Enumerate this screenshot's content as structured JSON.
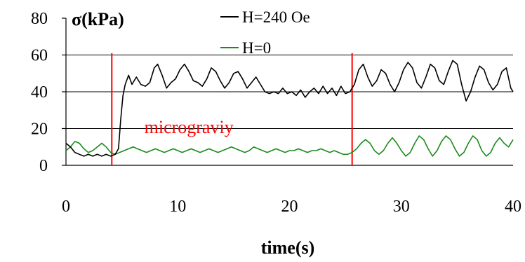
{
  "chart_data": {
    "type": "line",
    "xlabel": "time(s)",
    "ylabel": "σ(kPa)",
    "xlim": [
      0,
      40
    ],
    "ylim": [
      0,
      80
    ],
    "x_ticks": [
      "0",
      "10",
      "20",
      "30",
      "40"
    ],
    "y_ticks": [
      "0",
      "20",
      "40",
      "60",
      "80"
    ],
    "grid": "horizontal",
    "legend_placement": "top",
    "vlines": [
      4.1,
      25.6
    ],
    "annotation": {
      "text": "micrograviy",
      "x": 11.0,
      "y": 21.0
    },
    "series": [
      {
        "name": "H=240 Oe",
        "color": "#000000",
        "points": [
          [
            0.0,
            12
          ],
          [
            0.4,
            10
          ],
          [
            0.8,
            7
          ],
          [
            1.2,
            6
          ],
          [
            1.6,
            5
          ],
          [
            2.0,
            6
          ],
          [
            2.4,
            5
          ],
          [
            2.8,
            6
          ],
          [
            3.2,
            5
          ],
          [
            3.6,
            6
          ],
          [
            4.0,
            5
          ],
          [
            4.4,
            6
          ],
          [
            4.7,
            9
          ],
          [
            4.9,
            25
          ],
          [
            5.1,
            38
          ],
          [
            5.3,
            44
          ],
          [
            5.6,
            49
          ],
          [
            5.9,
            44
          ],
          [
            6.3,
            48
          ],
          [
            6.7,
            44
          ],
          [
            7.1,
            43
          ],
          [
            7.5,
            45
          ],
          [
            7.9,
            53
          ],
          [
            8.2,
            55
          ],
          [
            8.6,
            49
          ],
          [
            9.0,
            42
          ],
          [
            9.4,
            45
          ],
          [
            9.8,
            47
          ],
          [
            10.2,
            52
          ],
          [
            10.6,
            55
          ],
          [
            11.0,
            51
          ],
          [
            11.4,
            46
          ],
          [
            11.8,
            45
          ],
          [
            12.2,
            43
          ],
          [
            12.6,
            47
          ],
          [
            13.0,
            53
          ],
          [
            13.4,
            51
          ],
          [
            13.8,
            46
          ],
          [
            14.2,
            42
          ],
          [
            14.6,
            45
          ],
          [
            15.0,
            50
          ],
          [
            15.4,
            51
          ],
          [
            15.8,
            47
          ],
          [
            16.2,
            42
          ],
          [
            16.6,
            45
          ],
          [
            17.0,
            48
          ],
          [
            17.4,
            44
          ],
          [
            17.8,
            40
          ],
          [
            18.2,
            39
          ],
          [
            18.6,
            40
          ],
          [
            19.0,
            39
          ],
          [
            19.4,
            42
          ],
          [
            19.8,
            39
          ],
          [
            20.2,
            40
          ],
          [
            20.6,
            38
          ],
          [
            21.0,
            41
          ],
          [
            21.4,
            37
          ],
          [
            21.8,
            40
          ],
          [
            22.2,
            42
          ],
          [
            22.6,
            39
          ],
          [
            23.0,
            43
          ],
          [
            23.4,
            39
          ],
          [
            23.8,
            42
          ],
          [
            24.2,
            38
          ],
          [
            24.6,
            43
          ],
          [
            25.0,
            39
          ],
          [
            25.4,
            40
          ],
          [
            25.8,
            44
          ],
          [
            26.2,
            52
          ],
          [
            26.6,
            55
          ],
          [
            27.0,
            48
          ],
          [
            27.4,
            43
          ],
          [
            27.8,
            46
          ],
          [
            28.2,
            52
          ],
          [
            28.6,
            50
          ],
          [
            29.0,
            44
          ],
          [
            29.4,
            40
          ],
          [
            29.8,
            45
          ],
          [
            30.2,
            52
          ],
          [
            30.6,
            56
          ],
          [
            31.0,
            53
          ],
          [
            31.4,
            45
          ],
          [
            31.8,
            42
          ],
          [
            32.2,
            48
          ],
          [
            32.6,
            55
          ],
          [
            33.0,
            53
          ],
          [
            33.4,
            46
          ],
          [
            33.8,
            44
          ],
          [
            34.2,
            51
          ],
          [
            34.6,
            57
          ],
          [
            35.0,
            55
          ],
          [
            35.4,
            44
          ],
          [
            35.8,
            35
          ],
          [
            36.2,
            40
          ],
          [
            36.6,
            48
          ],
          [
            37.0,
            54
          ],
          [
            37.4,
            52
          ],
          [
            37.8,
            45
          ],
          [
            38.2,
            41
          ],
          [
            38.6,
            44
          ],
          [
            39.0,
            51
          ],
          [
            39.4,
            53
          ],
          [
            39.8,
            42
          ],
          [
            40.0,
            40
          ]
        ]
      },
      {
        "name": "H=0",
        "color": "#1a8a1a",
        "points": [
          [
            0.0,
            8
          ],
          [
            0.4,
            10
          ],
          [
            0.8,
            13
          ],
          [
            1.2,
            12
          ],
          [
            1.6,
            9
          ],
          [
            2.0,
            7
          ],
          [
            2.4,
            8
          ],
          [
            2.8,
            10
          ],
          [
            3.2,
            12
          ],
          [
            3.6,
            10
          ],
          [
            4.0,
            7
          ],
          [
            4.4,
            6
          ],
          [
            4.8,
            7
          ],
          [
            5.2,
            8
          ],
          [
            5.6,
            9
          ],
          [
            6.0,
            10
          ],
          [
            6.4,
            9
          ],
          [
            6.8,
            8
          ],
          [
            7.2,
            7
          ],
          [
            7.6,
            8
          ],
          [
            8.0,
            9
          ],
          [
            8.4,
            8
          ],
          [
            8.8,
            7
          ],
          [
            9.2,
            8
          ],
          [
            9.6,
            9
          ],
          [
            10.0,
            8
          ],
          [
            10.4,
            7
          ],
          [
            10.8,
            8
          ],
          [
            11.2,
            9
          ],
          [
            11.6,
            8
          ],
          [
            12.0,
            7
          ],
          [
            12.4,
            8
          ],
          [
            12.8,
            9
          ],
          [
            13.2,
            8
          ],
          [
            13.6,
            7
          ],
          [
            14.0,
            8
          ],
          [
            14.4,
            9
          ],
          [
            14.8,
            10
          ],
          [
            15.2,
            9
          ],
          [
            15.6,
            8
          ],
          [
            16.0,
            7
          ],
          [
            16.4,
            8
          ],
          [
            16.8,
            10
          ],
          [
            17.2,
            9
          ],
          [
            17.6,
            8
          ],
          [
            18.0,
            7
          ],
          [
            18.4,
            8
          ],
          [
            18.8,
            9
          ],
          [
            19.2,
            8
          ],
          [
            19.6,
            7
          ],
          [
            20.0,
            8
          ],
          [
            20.4,
            8
          ],
          [
            20.8,
            9
          ],
          [
            21.2,
            8
          ],
          [
            21.6,
            7
          ],
          [
            22.0,
            8
          ],
          [
            22.4,
            8
          ],
          [
            22.8,
            9
          ],
          [
            23.2,
            8
          ],
          [
            23.6,
            7
          ],
          [
            24.0,
            8
          ],
          [
            24.4,
            7
          ],
          [
            24.8,
            6
          ],
          [
            25.2,
            6
          ],
          [
            25.6,
            7
          ],
          [
            26.0,
            9
          ],
          [
            26.4,
            12
          ],
          [
            26.8,
            14
          ],
          [
            27.2,
            12
          ],
          [
            27.6,
            8
          ],
          [
            28.0,
            6
          ],
          [
            28.4,
            8
          ],
          [
            28.8,
            12
          ],
          [
            29.2,
            15
          ],
          [
            29.6,
            12
          ],
          [
            30.0,
            8
          ],
          [
            30.4,
            5
          ],
          [
            30.8,
            7
          ],
          [
            31.2,
            12
          ],
          [
            31.6,
            16
          ],
          [
            32.0,
            14
          ],
          [
            32.4,
            9
          ],
          [
            32.8,
            5
          ],
          [
            33.2,
            8
          ],
          [
            33.6,
            13
          ],
          [
            34.0,
            16
          ],
          [
            34.4,
            14
          ],
          [
            34.8,
            9
          ],
          [
            35.2,
            5
          ],
          [
            35.6,
            7
          ],
          [
            36.0,
            12
          ],
          [
            36.4,
            16
          ],
          [
            36.8,
            14
          ],
          [
            37.2,
            8
          ],
          [
            37.6,
            5
          ],
          [
            38.0,
            7
          ],
          [
            38.4,
            12
          ],
          [
            38.8,
            15
          ],
          [
            39.2,
            12
          ],
          [
            39.6,
            10
          ],
          [
            40.0,
            14
          ]
        ]
      }
    ]
  }
}
